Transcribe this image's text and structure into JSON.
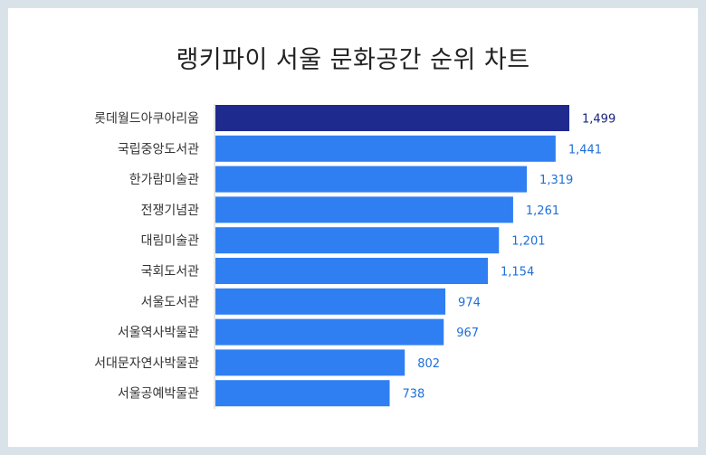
{
  "chart_data": {
    "type": "bar",
    "orientation": "horizontal",
    "title": "랭키파이 서울 문화공간 순위 차트",
    "categories": [
      "롯데월드아쿠아리움",
      "국립중앙도서관",
      "한가람미술관",
      "전쟁기념관",
      "대림미술관",
      "국회도서관",
      "서울도서관",
      "서울역사박물관",
      "서대문자연사박물관",
      "서울공예박물관"
    ],
    "values": [
      1499,
      1441,
      1319,
      1261,
      1201,
      1154,
      974,
      967,
      802,
      738
    ],
    "value_labels": [
      "1,499",
      "1,441",
      "1,319",
      "1,261",
      "1,201",
      "1,154",
      "974",
      "967",
      "802",
      "738"
    ],
    "xlim": [
      0,
      1499
    ],
    "colors": {
      "highlight_bar": "#1f2a8f",
      "bar": "#2f7ff2",
      "highlight_label": "#1a237e",
      "label": "#1e6fd9"
    }
  }
}
